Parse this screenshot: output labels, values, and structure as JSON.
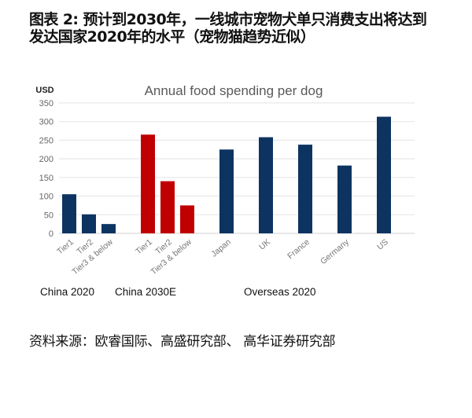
{
  "figure_title_line1": "图表 2: 预计到2030年，一线城市宠物犬单只消费支出将达到",
  "figure_title_line2": "发达国家2020年的水平（宠物猫趋势近似）",
  "source": "资料来源：欧睿国际、高盛研究部、 高华证券研究部",
  "chart_data": {
    "type": "bar",
    "title": "Annual food spending per dog",
    "ylabel": "USD",
    "ylim": [
      0,
      350
    ],
    "yticks": [
      0,
      50,
      100,
      150,
      200,
      250,
      300,
      350
    ],
    "grid": true,
    "colors": {
      "China 2020": "#0d3461",
      "China 2030E": "#c00000",
      "Overseas 2020": "#0d3461"
    },
    "groups": [
      {
        "name": "China 2020",
        "categories": [
          "Tier1",
          "Tier2",
          "Tier3 & below"
        ],
        "values": [
          105,
          51,
          25
        ]
      },
      {
        "name": "China 2030E",
        "categories": [
          "Tier1",
          "Tier2",
          "Tier3 & below"
        ],
        "values": [
          265,
          140,
          75
        ]
      },
      {
        "name": "Overseas 2020",
        "categories": [
          "Japan",
          "UK",
          "France",
          "Germany",
          "US"
        ],
        "values": [
          225,
          258,
          238,
          182,
          313
        ]
      }
    ]
  }
}
